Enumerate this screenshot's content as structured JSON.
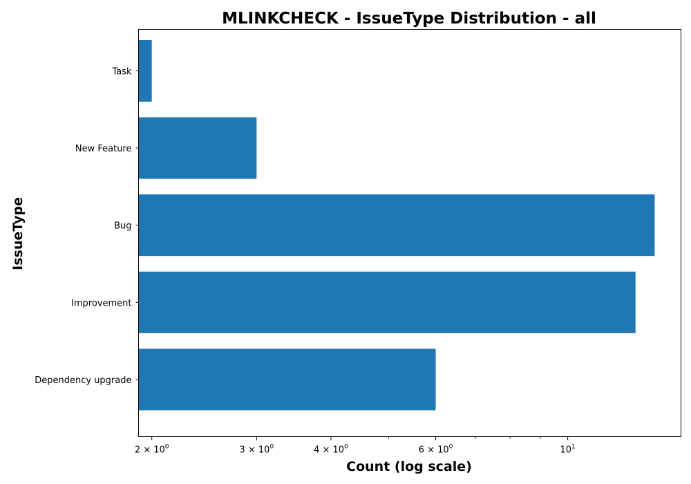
{
  "chart_data": {
    "type": "bar",
    "orientation": "horizontal",
    "title": "MLINKCHECK - IssueType Distribution - all",
    "xlabel": "Count (log scale)",
    "ylabel": "IssueType",
    "x_scale": "log",
    "xlim": [
      1.9,
      15.5
    ],
    "categories": [
      "Dependency upgrade",
      "Improvement",
      "Bug",
      "New Feature",
      "Task"
    ],
    "values": [
      6,
      13,
      14,
      3,
      2
    ],
    "x_ticks": [
      {
        "value": 2,
        "base": "2",
        "sup": "0"
      },
      {
        "value": 3,
        "base": "3",
        "sup": "0"
      },
      {
        "value": 4,
        "base": "4",
        "sup": "0"
      },
      {
        "value": 6,
        "base": "6",
        "sup": "0"
      },
      {
        "value": 10,
        "base": "10",
        "sup": "1"
      }
    ],
    "x_ticks_times": "×",
    "x_minor_ticks": [
      5,
      7,
      8,
      9
    ],
    "grid": false,
    "colors": {
      "bar": "#1f77b4",
      "axis": "#000000",
      "background": "#ffffff"
    }
  }
}
